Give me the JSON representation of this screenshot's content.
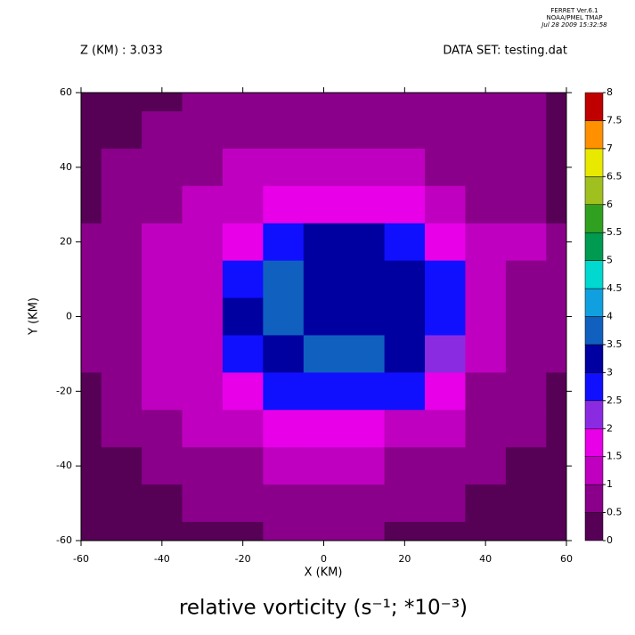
{
  "header": {
    "program": "FERRET  Ver.6.1",
    "org": "NOAA/PMEL TMAP",
    "date": "Jul 28 2009 15:32:58"
  },
  "chart_data": {
    "type": "contour",
    "subtitle_left": "Z (KM) : 3.033",
    "subtitle_right": "DATA SET: testing.dat",
    "title": "relative vorticity (s⁻¹; *10⁻³)",
    "xlabel": "X (KM)",
    "ylabel": "Y (KM)",
    "xlim": [
      -60,
      60
    ],
    "ylim": [
      -60,
      60
    ],
    "xticks": [
      -60,
      -40,
      -20,
      0,
      20,
      40,
      60
    ],
    "yticks": [
      -60,
      -40,
      -20,
      0,
      20,
      40,
      60
    ],
    "x": [
      -60,
      -50,
      -40,
      -30,
      -20,
      -10,
      0,
      10,
      20,
      30,
      40,
      50,
      60
    ],
    "y": [
      60,
      50,
      40,
      30,
      20,
      10,
      0,
      -10,
      -20,
      -30,
      -40,
      -50,
      -60
    ],
    "z": [
      [
        0.2,
        0.3,
        0.4,
        0.5,
        0.6,
        0.7,
        0.7,
        0.7,
        0.6,
        0.5,
        0.6,
        0.7,
        0.4
      ],
      [
        0.2,
        0.4,
        0.5,
        0.7,
        0.8,
        0.9,
        0.9,
        0.9,
        0.8,
        0.7,
        0.7,
        0.6,
        0.3
      ],
      [
        0.3,
        0.5,
        0.7,
        0.9,
        1.1,
        1.2,
        1.2,
        1.2,
        1.1,
        0.9,
        0.6,
        0.5,
        0.4
      ],
      [
        0.4,
        0.6,
        0.9,
        1.2,
        1.4,
        1.6,
        1.7,
        1.6,
        1.5,
        1.2,
        0.8,
        0.6,
        0.4
      ],
      [
        0.5,
        0.8,
        1.1,
        1.3,
        1.8,
        2.8,
        3.0,
        3.0,
        2.9,
        1.8,
        1.0,
        1.3,
        0.6
      ],
      [
        0.5,
        0.9,
        1.3,
        1.4,
        2.9,
        3.6,
        3.4,
        3.2,
        3.4,
        2.5,
        1.2,
        0.9,
        0.6
      ],
      [
        0.6,
        0.9,
        1.2,
        1.3,
        3.0,
        3.7,
        3.4,
        3.3,
        3.2,
        2.9,
        1.2,
        0.8,
        0.6
      ],
      [
        0.5,
        0.8,
        1.1,
        1.3,
        2.8,
        3.2,
        3.5,
        3.6,
        3.1,
        2.4,
        1.1,
        0.8,
        0.6
      ],
      [
        0.4,
        0.7,
        1.0,
        1.2,
        1.6,
        2.6,
        2.9,
        2.8,
        2.5,
        1.5,
        0.9,
        0.6,
        0.4
      ],
      [
        0.3,
        0.6,
        0.9,
        1.1,
        1.3,
        1.5,
        1.6,
        1.5,
        1.3,
        1.0,
        0.7,
        0.5,
        0.3
      ],
      [
        0.2,
        0.4,
        0.6,
        0.8,
        0.9,
        1.0,
        1.1,
        1.0,
        0.9,
        0.7,
        0.5,
        0.4,
        0.2
      ],
      [
        0.2,
        0.3,
        0.4,
        0.5,
        0.6,
        0.7,
        0.7,
        0.7,
        0.6,
        0.5,
        0.4,
        0.3,
        0.2
      ],
      [
        0.1,
        0.2,
        0.3,
        0.4,
        0.4,
        0.5,
        0.5,
        0.5,
        0.4,
        0.4,
        0.3,
        0.2,
        0.1
      ]
    ],
    "levels": [
      0,
      0.5,
      1,
      1.5,
      2,
      2.5,
      3,
      3.5,
      4,
      4.5,
      5,
      5.5,
      6,
      6.5,
      7,
      7.5,
      8
    ],
    "colors": [
      "#560056",
      "#8a008a",
      "#c000c0",
      "#e800e8",
      "#8a2be2",
      "#1010ff",
      "#0000a0",
      "#1060c0",
      "#10a0e0",
      "#00d8d0",
      "#009a50",
      "#30a020",
      "#a0c020",
      "#e8e800",
      "#ff9000",
      "#c00000"
    ]
  }
}
